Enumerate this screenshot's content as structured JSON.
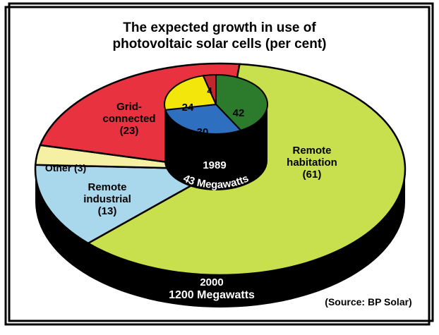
{
  "title_line1": "The expected growth in use of",
  "title_line2": "photovoltaic solar cells (per cent)",
  "source": "(Source: BP Solar)",
  "chart_data": [
    {
      "type": "pie",
      "title": "2000",
      "caption": "1200 Megawatts",
      "categories": [
        "Remote habitation",
        "Remote industrial",
        "Other",
        "Grid-connected"
      ],
      "values": [
        61,
        13,
        3,
        23
      ],
      "labels": [
        {
          "lines": [
            "Remote",
            "habitation",
            "(61)"
          ]
        },
        {
          "lines": [
            "Remote",
            "industrial",
            "(13)"
          ]
        },
        {
          "lines": [
            "Other (3)"
          ]
        },
        {
          "lines": [
            "Grid-",
            "connected",
            "(23)"
          ]
        }
      ],
      "colors": [
        "#c8e04e",
        "#a9d8ec",
        "#f6f0a4",
        "#e8323f"
      ]
    },
    {
      "type": "pie",
      "title": "1989",
      "caption": "43 Megawatts",
      "categories": [
        "Remote habitation",
        "Remote industrial",
        "Grid-connected",
        "Other"
      ],
      "values": [
        42,
        30,
        24,
        4
      ],
      "labels": [
        "42",
        "30",
        "24",
        "4"
      ],
      "colors": [
        "#2c7a2c",
        "#2f6fc0",
        "#f2e60a",
        "#c0282e"
      ]
    }
  ]
}
